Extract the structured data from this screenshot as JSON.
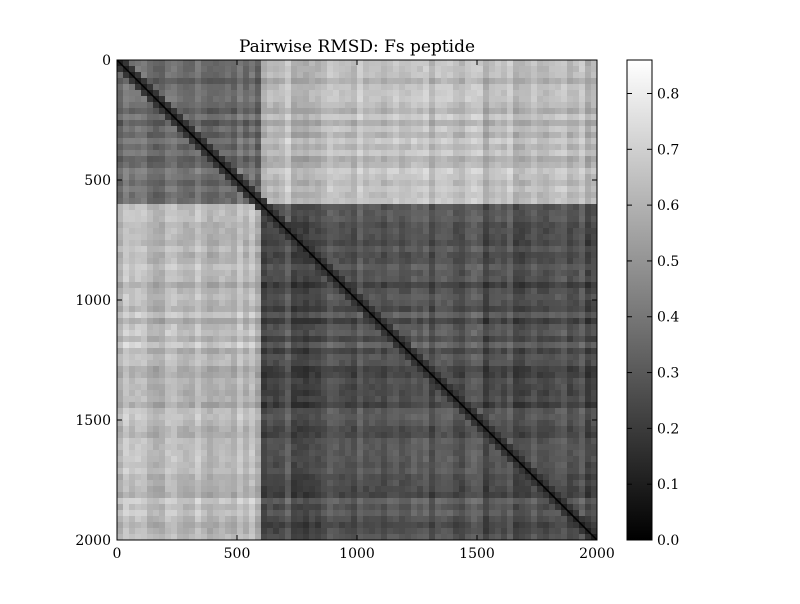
{
  "chart_data": {
    "type": "heatmap",
    "title": "Pairwise RMSD: Fs peptide",
    "xlabel": "",
    "ylabel": "",
    "xlim": [
      0,
      2000
    ],
    "ylim": [
      2000,
      0
    ],
    "x_ticks": [
      "0",
      "500",
      "1000",
      "1500",
      "2000"
    ],
    "y_ticks": [
      "0",
      "500",
      "1000",
      "1500",
      "2000"
    ],
    "colormap": "gray",
    "color_range": [
      0.0,
      0.86
    ],
    "colorbar_ticks": [
      "0.0",
      "0.1",
      "0.2",
      "0.3",
      "0.4",
      "0.5",
      "0.6",
      "0.7",
      "0.8"
    ],
    "colorbar_tick_values": [
      0.0,
      0.1,
      0.2,
      0.3,
      0.4,
      0.5,
      0.6,
      0.7,
      0.8
    ],
    "diagonal_value": 0.0,
    "blocks": [
      {
        "rows": [
          0,
          600
        ],
        "cols": [
          0,
          600
        ],
        "approx_value": 0.35
      },
      {
        "rows": [
          0,
          600
        ],
        "cols": [
          600,
          2000
        ],
        "approx_value": 0.62
      },
      {
        "rows": [
          600,
          2000
        ],
        "cols": [
          0,
          600
        ],
        "approx_value": 0.62
      },
      {
        "rows": [
          600,
          2000
        ],
        "cols": [
          600,
          2000
        ],
        "approx_value": 0.27
      }
    ]
  }
}
